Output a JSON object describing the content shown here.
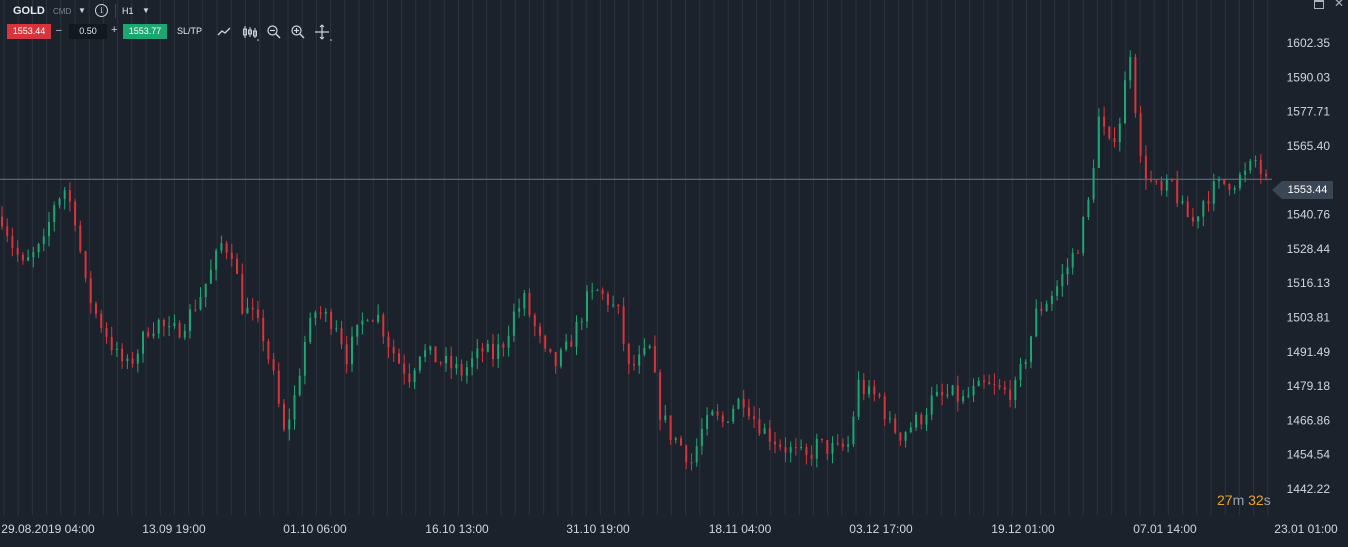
{
  "toolbar": {
    "symbol": "GOLD",
    "instrument_type": "CMD",
    "info_icon": "i",
    "timeframe": "H1",
    "sell_price": "1553.44",
    "volume": "0.50",
    "buy_price": "1553.77",
    "sl_tp_label": "SL/TP",
    "tools": [
      "line-chart-icon",
      "candlestick-icon",
      "zoom-out-icon",
      "zoom-in-icon",
      "crosshair-icon"
    ]
  },
  "current_price_label": "1553.44",
  "countdown": {
    "minutes": "27",
    "minutes_unit": "m",
    "seconds": "32",
    "seconds_unit": "s"
  },
  "colors": {
    "background": "#1b222c",
    "bull": "#1ea672",
    "bear": "#d8343b",
    "grid": "#2b333e"
  },
  "chart_data": {
    "type": "candlestick",
    "symbol": "GOLD",
    "timeframe": "H1",
    "current_price": 1553.44,
    "ylim": [
      1442.22,
      1608
    ],
    "y_ticks": [
      "1602.35",
      "1590.03",
      "1577.71",
      "1565.40",
      "1553.44",
      "1540.76",
      "1528.44",
      "1516.13",
      "1503.81",
      "1491.49",
      "1479.18",
      "1466.86",
      "1454.54",
      "1442.22"
    ],
    "x_ticks": [
      "29.08.2019 04:00",
      "13.09 19:00",
      "01.10 06:00",
      "16.10 13:00",
      "31.10 19:00",
      "18.11 04:00",
      "03.12 17:00",
      "19.12 01:00",
      "07.01 14:00",
      "23.01 01:00"
    ],
    "price_path": [
      1540,
      1530,
      1522,
      1526,
      1530,
      1545,
      1550,
      1540,
      1515,
      1505,
      1498,
      1490,
      1486,
      1492,
      1500,
      1502,
      1498,
      1500,
      1505,
      1512,
      1520,
      1530,
      1528,
      1508,
      1504,
      1497,
      1482,
      1462,
      1475,
      1495,
      1506,
      1504,
      1502,
      1490,
      1498,
      1506,
      1504,
      1495,
      1488,
      1483,
      1492,
      1490,
      1488,
      1486,
      1484,
      1488,
      1492,
      1490,
      1495,
      1505,
      1510,
      1500,
      1490,
      1487,
      1492,
      1500,
      1510,
      1513,
      1510,
      1505,
      1485,
      1488,
      1492,
      1470,
      1462,
      1458,
      1452,
      1463,
      1468,
      1466,
      1472,
      1475,
      1468,
      1463,
      1460,
      1457,
      1455,
      1453,
      1458,
      1457,
      1456,
      1458,
      1480,
      1476,
      1475,
      1465,
      1462,
      1465,
      1468,
      1474,
      1475,
      1476,
      1474,
      1477,
      1479,
      1478,
      1477,
      1478,
      1490,
      1505,
      1510,
      1515,
      1522,
      1530,
      1545,
      1575,
      1565,
      1575,
      1600,
      1560,
      1552,
      1548,
      1552,
      1542,
      1538,
      1546,
      1550,
      1552,
      1553,
      1555,
      1560,
      1552
    ]
  }
}
